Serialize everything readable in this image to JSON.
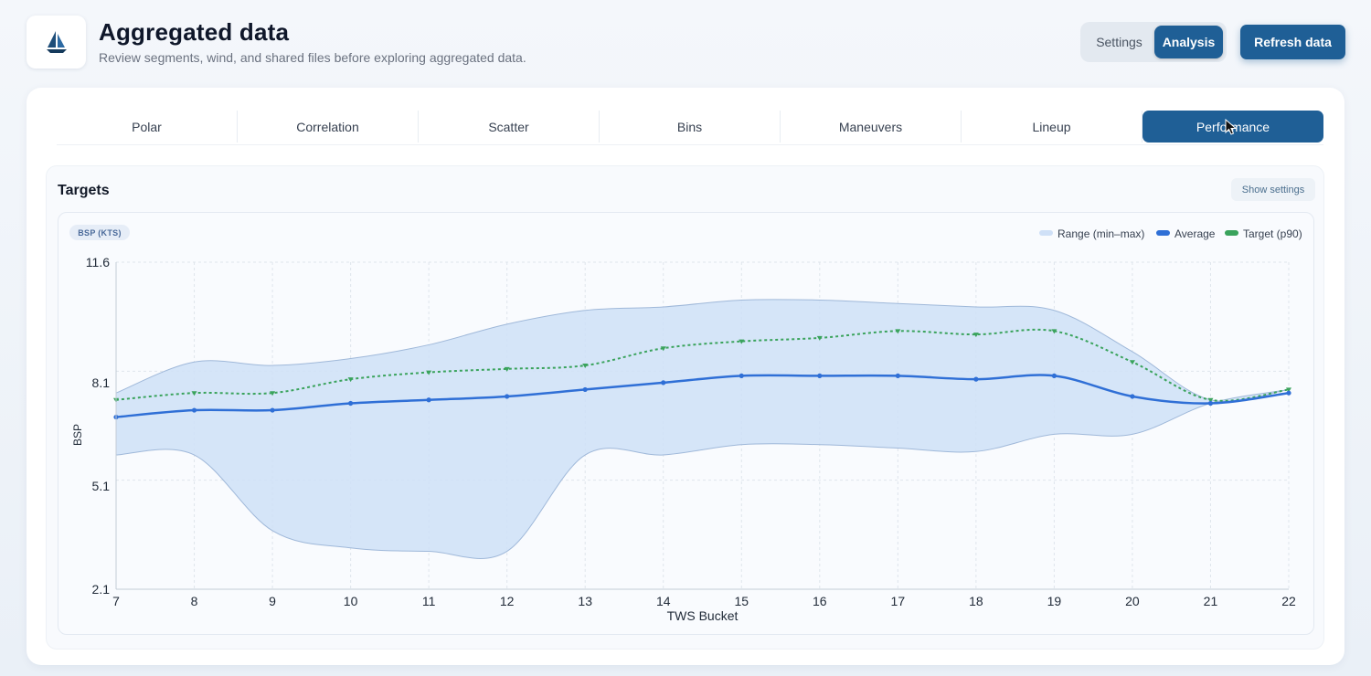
{
  "header": {
    "title": "Aggregated data",
    "subtitle": "Review segments, wind, and shared files before exploring aggregated data.",
    "logo_icon": "sailboat-icon",
    "mode_settings": "Settings",
    "mode_analysis": "Analysis",
    "refresh_label": "Refresh data"
  },
  "tabs": [
    {
      "label": "Polar"
    },
    {
      "label": "Correlation"
    },
    {
      "label": "Scatter"
    },
    {
      "label": "Bins"
    },
    {
      "label": "Maneuvers"
    },
    {
      "label": "Lineup"
    },
    {
      "label": "Performance",
      "active": true
    }
  ],
  "panel": {
    "title": "Targets",
    "settings_label": "Show settings"
  },
  "colors": {
    "accent": "#1f5f96",
    "range_fill": "#cfe0f7",
    "average": "#2f6fd6",
    "target": "#3aa35c"
  },
  "chart_data": {
    "type": "line",
    "badge": "BSP (KTS)",
    "ylabel": "BSP",
    "xlabel": "TWS Bucket",
    "ylim": [
      2.1,
      11.6
    ],
    "yticks": [
      11.6,
      8.1,
      5.1,
      2.1
    ],
    "grid": true,
    "legend_position": "top-right",
    "x": [
      7,
      8,
      9,
      10,
      11,
      12,
      13,
      14,
      15,
      16,
      17,
      18,
      19,
      20,
      21,
      22
    ],
    "range": {
      "name": "Range (min–max)",
      "min": [
        6.0,
        6.0,
        3.8,
        3.3,
        3.2,
        3.2,
        6.0,
        6.0,
        6.3,
        6.3,
        6.2,
        6.1,
        6.6,
        6.6,
        7.5,
        7.9
      ],
      "max": [
        7.8,
        8.7,
        8.6,
        8.8,
        9.2,
        9.8,
        10.2,
        10.3,
        10.5,
        10.5,
        10.4,
        10.3,
        10.2,
        9.0,
        7.6,
        7.9
      ]
    },
    "series": [
      {
        "name": "Average",
        "values": [
          7.1,
          7.3,
          7.3,
          7.5,
          7.6,
          7.7,
          7.9,
          8.1,
          8.3,
          8.3,
          8.3,
          8.2,
          8.3,
          7.7,
          7.5,
          7.8
        ]
      },
      {
        "name": "Target (p90)",
        "values": [
          7.6,
          7.8,
          7.8,
          8.2,
          8.4,
          8.5,
          8.6,
          9.1,
          9.3,
          9.4,
          9.6,
          9.5,
          9.6,
          8.7,
          7.6,
          7.9
        ]
      }
    ]
  }
}
